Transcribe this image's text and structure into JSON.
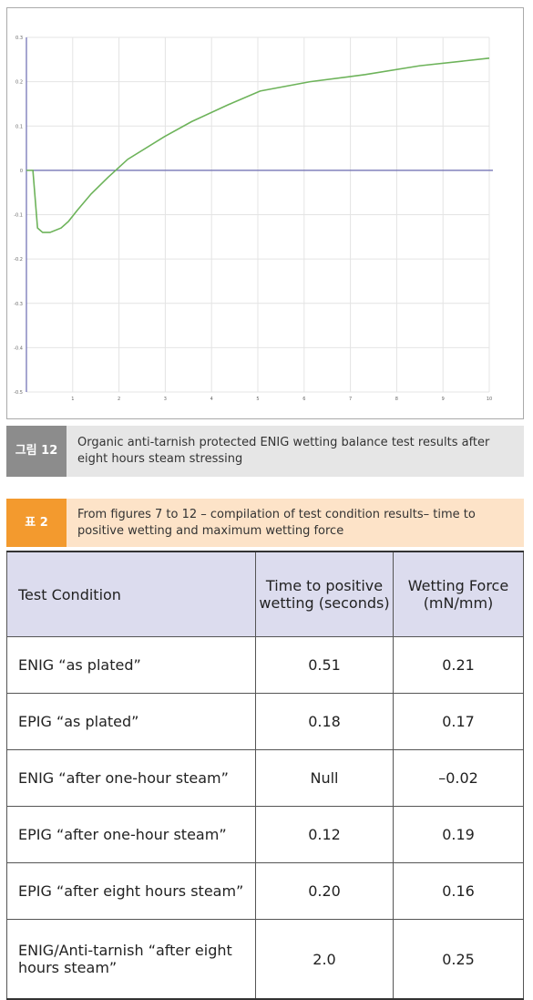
{
  "chart_data": {
    "type": "line",
    "x": [
      0,
      0.14,
      0.24,
      0.35,
      0.51,
      0.75,
      0.91,
      1.1,
      1.4,
      1.76,
      2.19,
      2.98,
      3.57,
      4.36,
      5.05,
      6.13,
      7.32,
      8.5,
      10
    ],
    "series": [
      {
        "color": "#6db35a",
        "values": [
          0,
          0,
          -0.13,
          -0.14,
          -0.14,
          -0.13,
          -0.115,
          -0.09,
          -0.053,
          -0.016,
          0.025,
          0.076,
          0.11,
          0.148,
          0.179,
          0.2,
          0.216,
          0.236,
          0.253
        ]
      }
    ],
    "xlim": [
      0,
      10
    ],
    "xticks": [
      1,
      2,
      3,
      4,
      5,
      6,
      7,
      8,
      9,
      10
    ],
    "ylim": [
      -0.5,
      0.3
    ],
    "yticks": [
      0.3,
      0.2,
      0.1,
      0,
      -0.1,
      -0.2,
      -0.3,
      -0.4,
      -0.5
    ],
    "grid": true
  },
  "figure_caption": {
    "label": "그림 12",
    "text": "Organic anti-tarnish protected ENIG wetting balance test results after eight hours steam stressing"
  },
  "table_caption": {
    "label": "표 2",
    "text": "From figures 7 to 12 – compilation of test condition results– time to positive wetting and maximum wetting force"
  },
  "table": {
    "header": [
      "Test Condition",
      "Time to positive wetting (seconds)",
      "Wetting Force (mN/mm)"
    ],
    "rows": [
      [
        "ENIG “as plated”",
        "0.51",
        "0.21"
      ],
      [
        "EPIG “as plated”",
        "0.18",
        "0.17"
      ],
      [
        "ENIG “after one-hour steam”",
        "Null",
        "–0.02"
      ],
      [
        "EPIG “after one-hour steam”",
        "0.12",
        "0.19"
      ],
      [
        "EPIG “after eight hours steam”",
        "0.20",
        "0.16"
      ],
      [
        "ENIG/Anti-tarnish “after eight hours steam”",
        "2.0",
        "0.25"
      ]
    ]
  }
}
